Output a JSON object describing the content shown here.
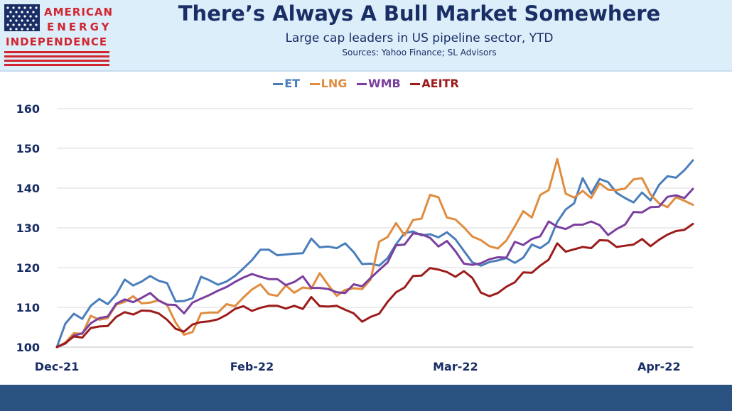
{
  "header": {
    "title": "There’s Always A Bull Market Somewhere",
    "subtitle": "Large cap leaders in US pipeline sector, YTD",
    "source": "Sources: Yahoo Finance; SL Advisors"
  },
  "logo": {
    "line1": "AMERICAN",
    "line2": "ENERGY",
    "line3": "INDEPENDENCE",
    "red": "#d22630",
    "blue": "#1a2e66"
  },
  "chart_data": {
    "type": "line",
    "title": "",
    "xlabel": "",
    "ylabel": "",
    "ylim": [
      100,
      160
    ],
    "yticks": [
      100,
      110,
      120,
      130,
      140,
      150,
      160
    ],
    "xticks": [
      {
        "label": "Dec-21",
        "index": 0
      },
      {
        "label": "Feb-22",
        "index": 23
      },
      {
        "label": "Mar-22",
        "index": 47
      },
      {
        "label": "Apr-22",
        "index": 71
      }
    ],
    "x_count": 76,
    "grid": true,
    "legend_position": "top-center",
    "series": [
      {
        "name": "ET",
        "color": "#4a7ebb",
        "values": [
          100,
          105.9,
          108.4,
          107.1,
          110.4,
          112.1,
          110.8,
          113.2,
          117,
          115.5,
          116.5,
          117.9,
          116.7,
          116.1,
          111.5,
          111.6,
          112.3,
          117.7,
          116.8,
          115.7,
          116.5,
          117.9,
          119.8,
          121.9,
          124.5,
          124.5,
          123.1,
          123.3,
          123.5,
          123.6,
          127.3,
          125.1,
          125.3,
          124.9,
          126.1,
          123.9,
          120.9,
          121,
          120.5,
          122.4,
          125.9,
          128.7,
          129.1,
          128.1,
          128.4,
          127.6,
          128.9,
          127.1,
          124.2,
          121.3,
          120.5,
          121.4,
          121.8,
          122.4,
          121.2,
          122.5,
          125.8,
          124.9,
          126.4,
          131.5,
          134.6,
          136.2,
          142.5,
          138.6,
          142.3,
          141.5,
          138.8,
          137.5,
          136.4,
          138.9,
          136.9,
          140.8,
          143,
          142.6,
          144.5,
          147
        ]
      },
      {
        "name": "LNG",
        "color": "#e08c3f",
        "values": [
          100,
          101.1,
          103.5,
          103.3,
          107.9,
          106.9,
          107.3,
          110.7,
          111.4,
          112.8,
          111,
          111.2,
          111.8,
          110.6,
          106.2,
          103.1,
          103.8,
          108.5,
          108.7,
          108.7,
          110.8,
          110.3,
          112.5,
          114.5,
          115.8,
          113.3,
          112.9,
          115.5,
          113.7,
          115,
          114.7,
          118.6,
          115.6,
          112.9,
          114.4,
          114.8,
          114.6,
          117,
          126.5,
          127.7,
          131.2,
          128.1,
          132,
          132.3,
          138.3,
          137.7,
          132.6,
          132.1,
          130.1,
          127.8,
          126.9,
          125.4,
          124.8,
          126.8,
          130.4,
          134.2,
          132.6,
          138.3,
          139.5,
          147.3,
          138.6,
          137.6,
          139.3,
          137.5,
          141.2,
          139.6,
          139.5,
          139.9,
          142.2,
          142.5,
          138.4,
          136.2,
          135.2,
          137.7,
          136.8,
          135.8
        ]
      },
      {
        "name": "WMB",
        "color": "#7b3f9e",
        "values": [
          100,
          100.9,
          102.9,
          103.5,
          106,
          107.3,
          107.7,
          110.9,
          112,
          111.3,
          112.4,
          113.6,
          111.7,
          110.7,
          110.6,
          108.5,
          111.2,
          112.2,
          113.1,
          114.2,
          115.1,
          116.4,
          117.5,
          118.4,
          117.7,
          117.1,
          117.1,
          115.6,
          116.4,
          117.8,
          114.9,
          114.9,
          114.6,
          113.8,
          113.6,
          115.8,
          115.3,
          117.4,
          119.4,
          121.3,
          125.6,
          125.8,
          128.6,
          128.4,
          127.5,
          125.3,
          126.7,
          124.1,
          121,
          120.7,
          121.1,
          122.1,
          122.6,
          122.5,
          126.5,
          125.7,
          127.2,
          127.9,
          131.6,
          130.3,
          129.7,
          130.8,
          130.8,
          131.6,
          130.7,
          128.2,
          129.7,
          130.8,
          134,
          133.9,
          135.2,
          135.3,
          137.8,
          138.2,
          137.5,
          139.8
        ]
      },
      {
        "name": "AEITR",
        "color": "#9c1c1c",
        "values": [
          100,
          101,
          102.7,
          102.4,
          104.8,
          105.2,
          105.3,
          107.6,
          108.8,
          108.2,
          109.2,
          109.1,
          108.5,
          106.9,
          104.6,
          103.9,
          105.7,
          106.3,
          106.5,
          107,
          108.1,
          109.6,
          110.3,
          109.1,
          109.9,
          110.4,
          110.4,
          109.7,
          110.4,
          109.6,
          112.6,
          110.3,
          110.2,
          110.4,
          109.4,
          108.5,
          106.4,
          107.6,
          108.4,
          111.4,
          113.8,
          115,
          117.9,
          118,
          119.9,
          119.5,
          118.9,
          117.7,
          119.1,
          117.4,
          113.7,
          112.8,
          113.6,
          115.2,
          116.3,
          118.8,
          118.7,
          120.5,
          122,
          126.1,
          124,
          124.6,
          125.2,
          124.9,
          126.9,
          126.8,
          125.2,
          125.5,
          125.8,
          127.2,
          125.4,
          127,
          128.3,
          129.2,
          129.5,
          131
        ]
      }
    ]
  }
}
